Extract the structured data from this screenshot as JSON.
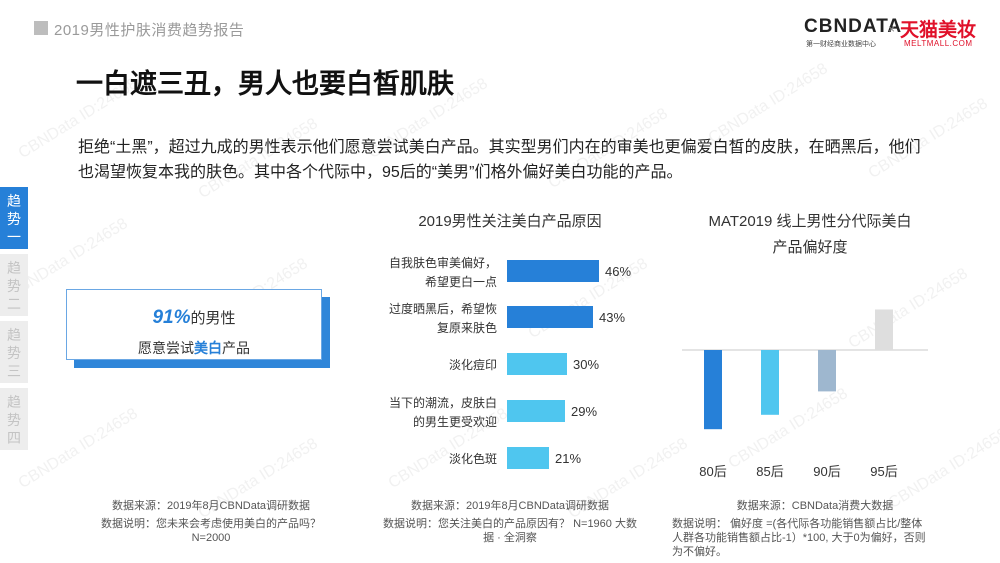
{
  "header": {
    "report_title": "2019男性护肤消费趋势报告",
    "logo_cbndata": "CBNDATA",
    "logo_cbndata_sub": "第一财经商业数据中心",
    "logo_separator": "×",
    "logo_tmall": "天猫美妆",
    "logo_tmall_sub": "MELTMALL.COM"
  },
  "headline": "一白遮三丑，男人也要白皙肌肤",
  "summary": "拒绝“土黑”，超过九成的男性表示他们愿意尝试美白产品。其实型男们内在的审美也更偏爱白皙的皮肤，在晒黑后，他们也渴望恢复本我的肤色。其中各个代际中，95后的“美男”们格外偏好美白功能的产品。",
  "side_tabs": [
    {
      "chars": [
        "趋",
        "势",
        "一"
      ],
      "active": true
    },
    {
      "chars": [
        "趋",
        "势",
        "二"
      ],
      "active": false
    },
    {
      "chars": [
        "趋",
        "势",
        "三"
      ],
      "active": false
    },
    {
      "chars": [
        "趋",
        "势",
        "四"
      ],
      "active": false
    }
  ],
  "highlight": {
    "pct": "91%",
    "line1_rest": "的男性",
    "line2_pre": "愿意尝试",
    "line2_strong": "美白",
    "line2_post": "产品"
  },
  "colors": {
    "accent_blue": "#2680d8",
    "bar_dark": "#2680d8",
    "bar_light": "#4fc6ef",
    "bar_gray_blue": "#9eb7cf",
    "bar_light_gray": "#dedede",
    "tab_inactive": "#ededed"
  },
  "chart_data": [
    {
      "type": "bar",
      "orientation": "horizontal",
      "title": "2019男性关注美白产品原因",
      "categories": [
        [
          "自我肤色审美偏好，",
          "希望更白一点"
        ],
        [
          "过度晒黑后，希望恢",
          "复原来肤色"
        ],
        [
          "淡化痘印"
        ],
        [
          "当下的潮流，皮肤白",
          "的男生更受欢迎"
        ],
        [
          "淡化色斑"
        ]
      ],
      "values": [
        46,
        43,
        30,
        29,
        21
      ],
      "value_labels": [
        "46%",
        "43%",
        "30%",
        "29%",
        "21%"
      ],
      "xlim": [
        0,
        50
      ],
      "bar_colors": [
        "#2680d8",
        "#2680d8",
        "#4fc6ef",
        "#4fc6ef",
        "#4fc6ef"
      ]
    },
    {
      "type": "bar",
      "orientation": "vertical",
      "title": "MAT2019 线上男性分代际美白",
      "title_line2": "产品偏好度",
      "categories": [
        "80后",
        "85后",
        "90后",
        "95后"
      ],
      "values": [
        -88,
        -72,
        -46,
        45
      ],
      "ylim": [
        -100,
        100
      ],
      "bar_colors": [
        "#2680d8",
        "#4fc6ef",
        "#9eb7cf",
        "#dedede"
      ]
    }
  ],
  "notes": {
    "n1_source": "数据来源：2019年8月CBNData调研数据",
    "n1_desc": "数据说明：您未来会考虑使用美白的产品吗？N=2000",
    "n2_source": "数据来源：2019年8月CBNData调研数据",
    "n2_desc": "数据说明：您关注美白的产品原因有？ N=1960 大数据 · 全洞察",
    "n3_source": "数据来源：CBNData消费大数据",
    "n3_desc": "数据说明：  偏好度 =(各代际各功能销售额占比/整体人群各功能销售额占比-1）*100, 大于0为偏好，否则为不偏好。"
  },
  "watermark": "CBNData ID:24658"
}
